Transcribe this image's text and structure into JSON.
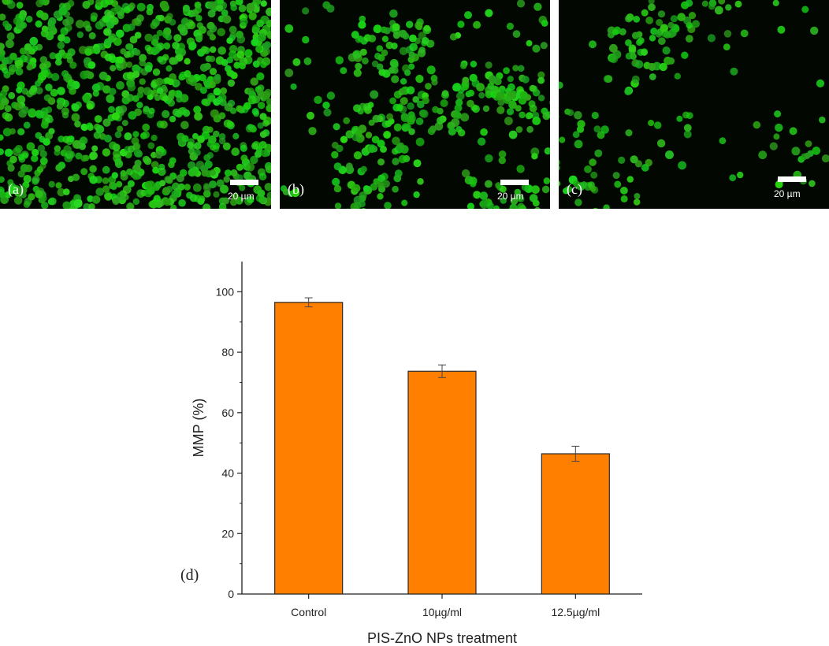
{
  "panels": [
    {
      "label": "(a)",
      "scale": "20 µm",
      "density": 1.0
    },
    {
      "label": "(b)",
      "scale": "20 µm",
      "density": 0.45
    },
    {
      "label": "(c)",
      "scale": "20 µm",
      "density": 0.22
    }
  ],
  "colors": {
    "cell": "#22c21e",
    "panel_bg": "#020702",
    "bar_fill": "#ff8000",
    "bar_stroke": "#2b2b2b"
  },
  "chart_label": "(d)",
  "chart_data": {
    "type": "bar",
    "categories": [
      "Control",
      "10µg/ml",
      "12.5µg/ml"
    ],
    "values": [
      96.5,
      73.7,
      46.4
    ],
    "errors": [
      1.5,
      2.1,
      2.5
    ],
    "xlabel": "PIS-ZnO NPs treatment",
    "ylabel": "MMP (%)",
    "ylim": [
      0,
      110
    ],
    "yticks": [
      0,
      20,
      40,
      60,
      80,
      100
    ],
    "grid": false
  }
}
